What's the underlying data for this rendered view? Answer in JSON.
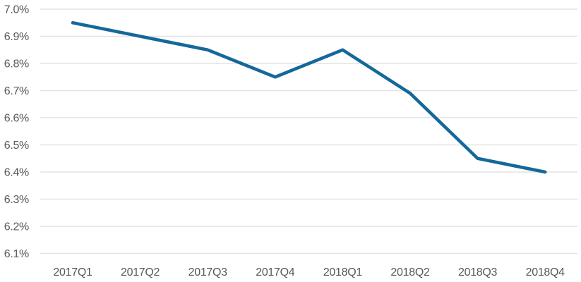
{
  "chart_data": {
    "type": "line",
    "title": "",
    "subtitle": "",
    "categories": [
      "2017Q1",
      "2017Q2",
      "2017Q3",
      "2017Q4",
      "2018Q1",
      "2018Q2",
      "2018Q3",
      "2018Q4"
    ],
    "values": [
      6.95,
      6.9,
      6.85,
      6.75,
      6.85,
      6.69,
      6.45,
      6.4
    ],
    "unit": "%",
    "xlabel": "",
    "ylabel": "",
    "ylim": [
      6.1,
      7.0
    ],
    "ytick_step": 0.1,
    "ytick_labels": [
      "6.1%",
      "6.2%",
      "6.3%",
      "6.4%",
      "6.5%",
      "6.6%",
      "6.7%",
      "6.8%",
      "6.9%",
      "7.0%"
    ],
    "grid": true,
    "legend_position": "none",
    "markers": false,
    "colors": {
      "line": "#15689a",
      "grid": "#e3e3e3",
      "label": "#58585a",
      "background": "#ffffff"
    }
  }
}
